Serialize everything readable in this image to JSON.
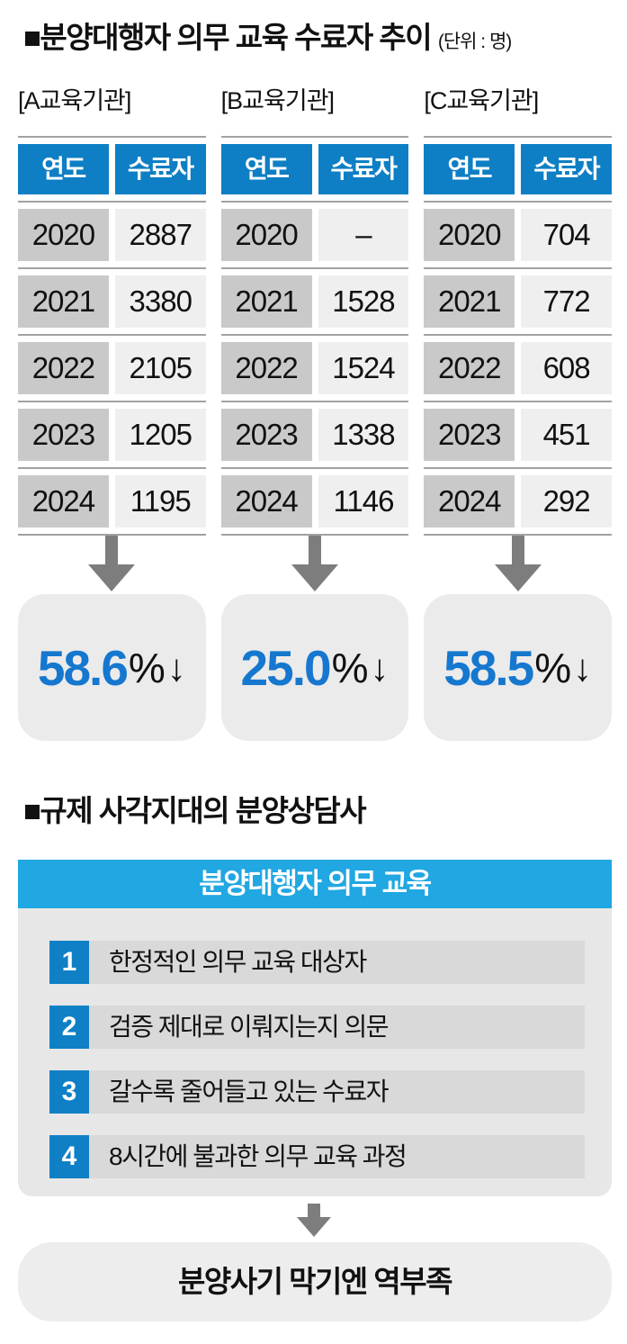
{
  "section1": {
    "title": "■분양대행자 의무 교육 수료자 추이",
    "unit": "(단위 : 명)",
    "tables": [
      {
        "label": "[A교육기관]",
        "col_year": "연도",
        "col_value": "수료자",
        "rows": [
          {
            "year": "2020",
            "value": "2887"
          },
          {
            "year": "2021",
            "value": "3380"
          },
          {
            "year": "2022",
            "value": "2105"
          },
          {
            "year": "2023",
            "value": "1205"
          },
          {
            "year": "2024",
            "value": "1195"
          }
        ],
        "pct": "58.6"
      },
      {
        "label": "[B교육기관]",
        "col_year": "연도",
        "col_value": "수료자",
        "rows": [
          {
            "year": "2020",
            "value": "–"
          },
          {
            "year": "2021",
            "value": "1528"
          },
          {
            "year": "2022",
            "value": "1524"
          },
          {
            "year": "2023",
            "value": "1338"
          },
          {
            "year": "2024",
            "value": "1146"
          }
        ],
        "pct": "25.0"
      },
      {
        "label": "[C교육기관]",
        "col_year": "연도",
        "col_value": "수료자",
        "rows": [
          {
            "year": "2020",
            "value": "704"
          },
          {
            "year": "2021",
            "value": "772"
          },
          {
            "year": "2022",
            "value": "608"
          },
          {
            "year": "2023",
            "value": "451"
          },
          {
            "year": "2024",
            "value": "292"
          }
        ],
        "pct": "58.5"
      }
    ]
  },
  "symbols": {
    "percent": "%",
    "down_arrow": "↓"
  },
  "section2": {
    "title": "■규제 사각지대의 분양상담사",
    "header": "분양대행자 의무 교육",
    "items": [
      {
        "num": "1",
        "text": "한정적인 의무 교육 대상자"
      },
      {
        "num": "2",
        "text": "검증 제대로 이뤄지는지 의문"
      },
      {
        "num": "3",
        "text": "갈수록 줄어들고 있는 수료자"
      },
      {
        "num": "4",
        "text": "8시간에 불과한 의무 교육 과정"
      }
    ],
    "conclusion": "분양사기 막기엔 역부족"
  },
  "colors": {
    "table_header_blue": "#0e7fc4",
    "section_bar_blue": "#21a7e2",
    "badge_blue": "#0f80c6",
    "percent_blue": "#1677cf",
    "year_cell_gray": "#c9c9c9",
    "value_cell_gray": "#efefef",
    "arrow_gray": "#7d7d7d"
  },
  "chart_data": {
    "type": "table",
    "title": "분양대행자 의무 교육 수료자 추이",
    "unit": "명",
    "categories": [
      "2020",
      "2021",
      "2022",
      "2023",
      "2024"
    ],
    "series": [
      {
        "name": "A교육기관",
        "values": [
          2887,
          3380,
          2105,
          1205,
          1195
        ],
        "change_pct": -58.6
      },
      {
        "name": "B교육기관",
        "values": [
          null,
          1528,
          1524,
          1338,
          1146
        ],
        "change_pct": -25.0
      },
      {
        "name": "C교육기관",
        "values": [
          704,
          772,
          608,
          451,
          292
        ],
        "change_pct": -58.5
      }
    ]
  }
}
